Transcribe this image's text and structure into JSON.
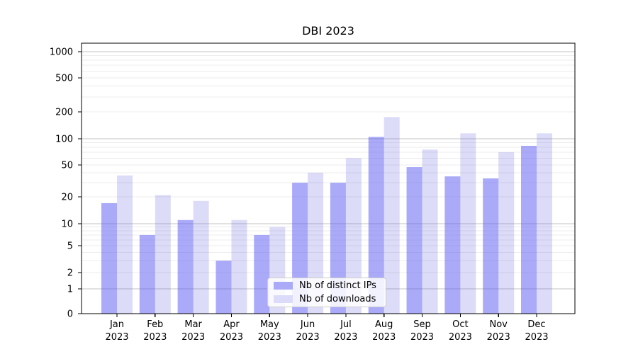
{
  "page": {
    "background": "#ffffff"
  },
  "chart_data": {
    "type": "bar",
    "title": "DBI 2023",
    "categories": [
      "Jan 2023",
      "Feb 2023",
      "Mar 2023",
      "Apr 2023",
      "May 2023",
      "Jun 2023",
      "Jul 2023",
      "Aug 2023",
      "Sep 2023",
      "Oct 2023",
      "Nov 2023",
      "Dec 2023"
    ],
    "series": [
      {
        "name": "Nb of distinct IPs",
        "swatch_color": "#aaaaf9",
        "fill": "#5656f4",
        "fill_opacity": 0.5,
        "values": [
          17,
          7,
          11,
          3,
          7,
          30,
          30,
          105,
          47,
          36,
          34,
          83
        ]
      },
      {
        "name": "Nb of downloads",
        "swatch_color": "#dcdcfa",
        "fill": "#5050dc",
        "fill_opacity": 0.2,
        "values": [
          37,
          21,
          18,
          11,
          9,
          40,
          60,
          175,
          75,
          115,
          70,
          115
        ]
      }
    ],
    "xlabel": "",
    "ylabel": "",
    "y_scale": "symlog",
    "y_ticks": [
      0,
      1,
      2,
      5,
      10,
      20,
      50,
      100,
      200,
      500,
      1000
    ],
    "ylim": [
      0,
      1300
    ],
    "grid": true,
    "major_grid_color": "#c3c3c3",
    "minor_grid_color": "#ececec",
    "axis_color": "#000000",
    "legend_position": "lower center"
  }
}
